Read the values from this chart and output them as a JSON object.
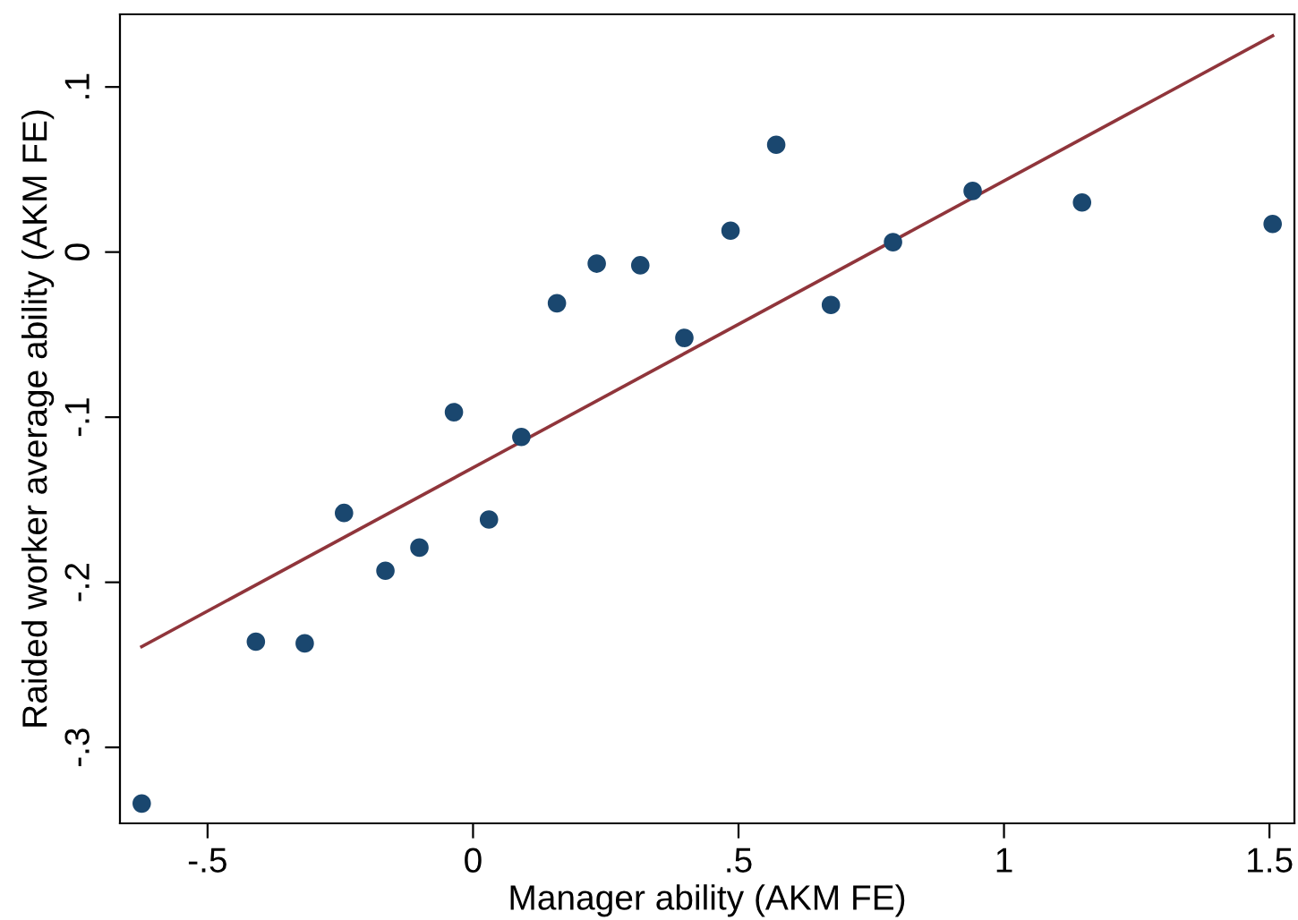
{
  "chart_data": {
    "type": "scatter",
    "xlabel": "Manager ability (AKM FE)",
    "ylabel": "Raided worker average ability (AKM FE)",
    "series": [
      {
        "marker": "circle",
        "color": "#1a476f",
        "x": [
          -0.624,
          -0.409,
          -0.317,
          -0.243,
          -0.165,
          -0.101,
          -0.036,
          0.03,
          0.091,
          0.158,
          0.233,
          0.315,
          0.398,
          0.485,
          0.571,
          0.674,
          0.791,
          0.941,
          1.147,
          1.506
        ],
        "values": [
          -0.334,
          -0.236,
          -0.237,
          -0.158,
          -0.193,
          -0.179,
          -0.097,
          -0.162,
          -0.112,
          -0.031,
          -0.007,
          -0.008,
          -0.052,
          0.013,
          0.065,
          -0.032,
          0.006,
          0.037,
          0.03,
          0.017
        ]
      },
      {
        "type": "line",
        "color": "#90353b",
        "x": [
          -0.624,
          1.506
        ],
        "values": [
          -0.239,
          0.131
        ]
      }
    ],
    "grid": false,
    "xlim": [
      -0.665,
      1.547
    ],
    "ylim": [
      -0.346,
      0.144
    ],
    "xticks": [
      {
        "value": -0.5,
        "label": "-.5"
      },
      0,
      {
        "value": 0.5,
        "label": ".5"
      },
      1,
      1.5
    ],
    "yticks": [
      {
        "value": -0.3,
        "label": "-.3"
      },
      {
        "value": -0.2,
        "label": "-.2"
      },
      {
        "value": -0.1,
        "label": "-.1"
      },
      0,
      {
        "value": 0.1,
        "label": ".1"
      }
    ]
  }
}
